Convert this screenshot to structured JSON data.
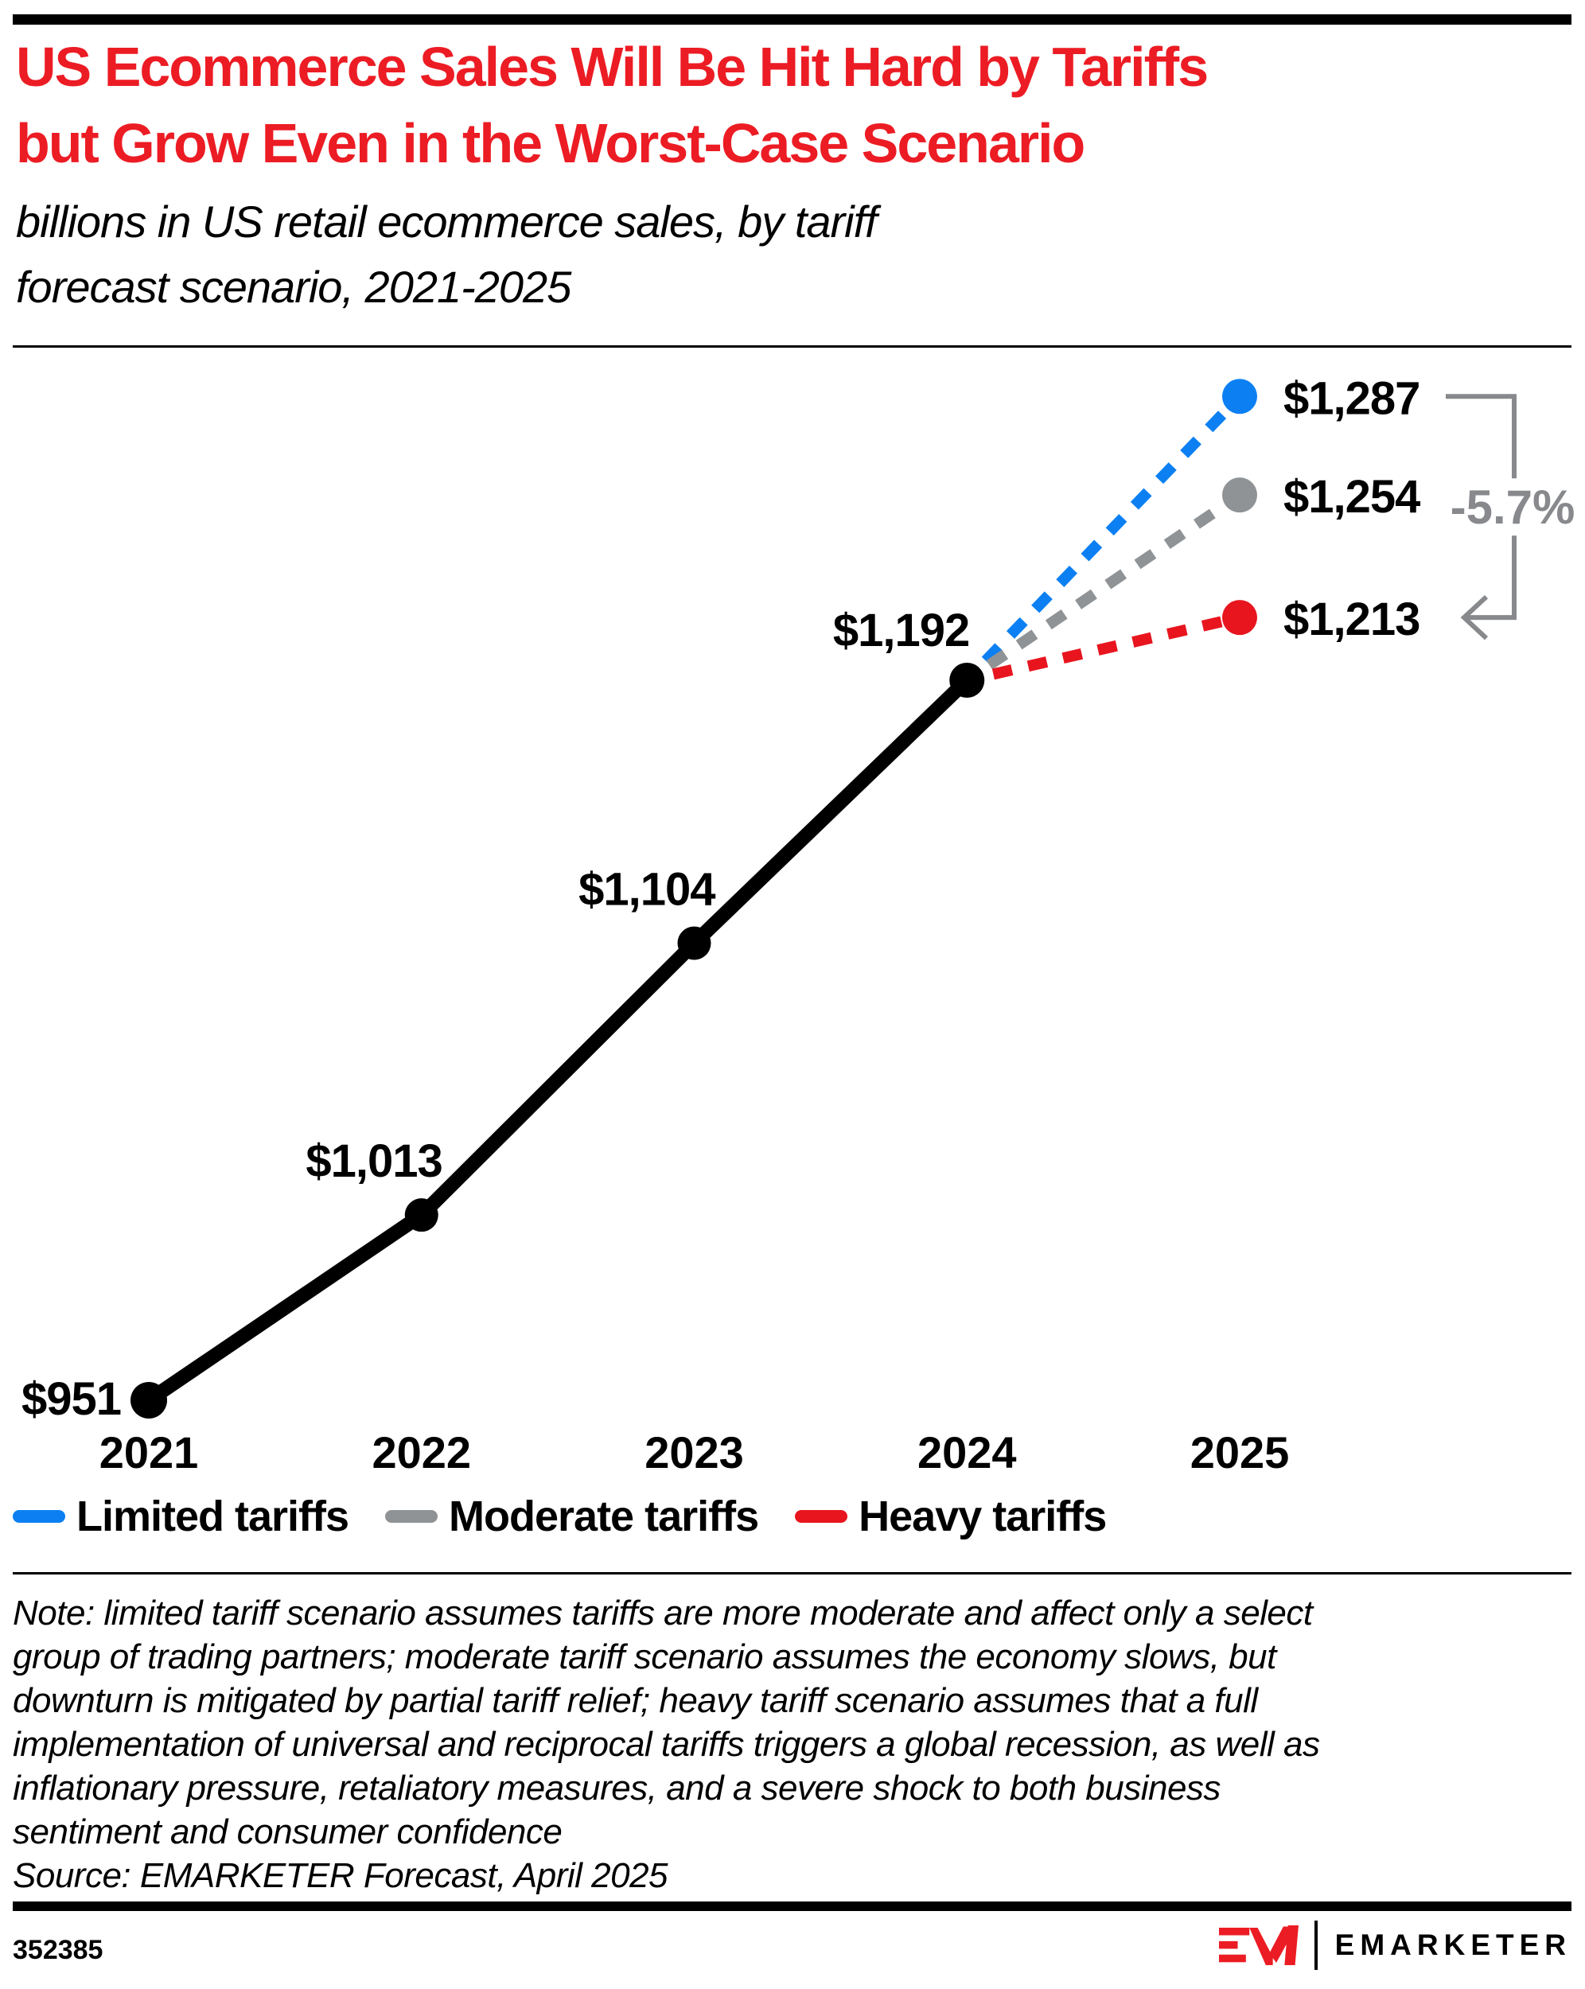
{
  "header": {
    "title_lines": [
      "US Ecommerce Sales Will Be Hit Hard by Tariffs",
      "but Grow Even in the Worst-Case Scenario"
    ],
    "title_color": "#ec1c24",
    "subtitle_lines": [
      "billions in US retail ecommerce sales, by tariff",
      "forecast scenario, 2021-2025"
    ]
  },
  "chart_data": {
    "type": "line",
    "title": "US Ecommerce Sales Will Be Hit Hard by Tariffs but Grow Even in the Worst-Case Scenario",
    "subtitle": "billions in US retail ecommerce sales, by tariff forecast scenario, 2021-2025",
    "unit": "billions of US dollars",
    "categories": [
      "2021",
      "2022",
      "2023",
      "2024",
      "2025"
    ],
    "series": [
      {
        "name": "US retail ecommerce sales (actual/base)",
        "x": [
          2021,
          2022,
          2023,
          2024
        ],
        "values": [
          951,
          1013,
          1104,
          1192
        ],
        "point_labels": [
          "$951",
          "$1,013",
          "$1,104",
          "$1,192"
        ],
        "color": "#000000",
        "style": "solid"
      },
      {
        "name": "Limited tariffs",
        "x": [
          2024,
          2025
        ],
        "values": [
          1192,
          1287
        ],
        "point_labels": [
          null,
          "$1,287"
        ],
        "color": "#0c80f2",
        "style": "dashed"
      },
      {
        "name": "Moderate tariffs",
        "x": [
          2024,
          2025
        ],
        "values": [
          1192,
          1254
        ],
        "point_labels": [
          null,
          "$1,254"
        ],
        "color": "#909396",
        "style": "dashed"
      },
      {
        "name": "Heavy tariffs",
        "x": [
          2024,
          2025
        ],
        "values": [
          1192,
          1213
        ],
        "point_labels": [
          null,
          "$1,213"
        ],
        "color": "#e8151e",
        "style": "dashed"
      }
    ],
    "annotation": {
      "text": "-5.7%",
      "color": "#87898c",
      "from_value": 1287,
      "to_value": 1213,
      "meaning": "difference between limited-tariff and heavy-tariff 2025 scenarios"
    },
    "legend": [
      {
        "label": "Limited tariffs",
        "color": "#0c80f2"
      },
      {
        "label": "Moderate tariffs",
        "color": "#909396"
      },
      {
        "label": "Heavy tariffs",
        "color": "#e8151e"
      }
    ],
    "legend_position": "bottom",
    "x_axis_labels": [
      "2021",
      "2022",
      "2023",
      "2024",
      "2025"
    ],
    "ylim": [
      951,
      1287
    ],
    "grid": false
  },
  "note": {
    "lines": [
      "Note: limited tariff scenario assumes tariffs are more moderate and affect only a select",
      "group of trading partners; moderate tariff scenario assumes the economy slows, but",
      "downturn is mitigated by partial tariff relief; heavy tariff scenario assumes that a full",
      "implementation of universal and reciprocal tariffs triggers a global recession, as well as",
      "inflationary pressure, retaliatory measures, and a severe shock to both business",
      "sentiment and consumer confidence"
    ],
    "source": "Source: EMARKETER Forecast, April 2025"
  },
  "footer": {
    "chart_id": "352385",
    "brand": "EMARKETER",
    "brand_color": "#ec1c24"
  }
}
